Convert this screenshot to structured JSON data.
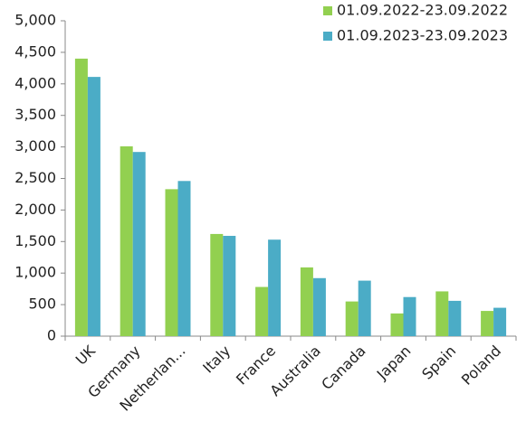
{
  "chart_data": {
    "type": "bar",
    "categories": [
      "UK",
      "Germany",
      "Netherlan...",
      "Italy",
      "France",
      "Australia",
      "Canada",
      "Japan",
      "Spain",
      "Poland"
    ],
    "series": [
      {
        "name": "01.09.2022-23.09.2022",
        "color": "#92d050",
        "values": [
          4400,
          3010,
          2330,
          1620,
          780,
          1090,
          550,
          360,
          710,
          400
        ]
      },
      {
        "name": "01.09.2023-23.09.2023",
        "color": "#4bacc6",
        "values": [
          4110,
          2920,
          2460,
          1590,
          1530,
          920,
          880,
          620,
          560,
          450
        ]
      }
    ],
    "ylim": [
      0,
      5000
    ],
    "yticks": [
      0,
      500,
      {
        "value": 1000,
        "label": "1,000"
      },
      {
        "value": 1500,
        "label": "1,500"
      },
      {
        "value": 2000,
        "label": "2,000"
      },
      {
        "value": 2500,
        "label": "2,500"
      },
      {
        "value": 3000,
        "label": "3,000"
      },
      {
        "value": 3500,
        "label": "3,500"
      },
      {
        "value": 4000,
        "label": "4,000"
      },
      {
        "value": 4500,
        "label": "4,500"
      },
      {
        "value": 5000,
        "label": "5,000"
      }
    ],
    "grid": false,
    "legend": "top-right"
  }
}
